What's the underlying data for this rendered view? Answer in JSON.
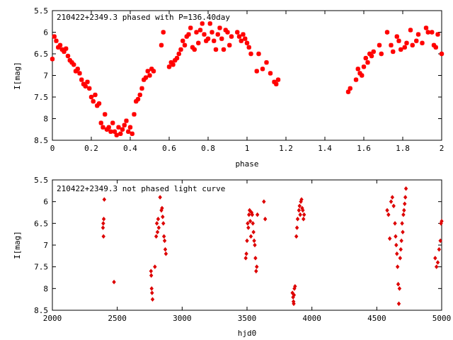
{
  "chart_data": [
    {
      "type": "scatter",
      "title": "210422+2349.3 phased with P=136.40day",
      "xlabel": "phase",
      "ylabel": "I[mag]",
      "xlim": [
        0,
        2
      ],
      "ylim": [
        8.5,
        5.5
      ],
      "y_inverted": true,
      "grid": false,
      "marker": "star",
      "color": "#ff0000",
      "xticks": [
        "0",
        "0.2",
        "0.4",
        "0.6",
        "0.8",
        "1",
        "1.2",
        "1.4",
        "1.6",
        "1.8",
        "2"
      ],
      "yticks": [
        "5.5",
        "6",
        "6.5",
        "7",
        "7.5",
        "8",
        "8.5"
      ],
      "points": [
        [
          0.0,
          6.62
        ],
        [
          0.01,
          6.1
        ],
        [
          0.02,
          6.2
        ],
        [
          0.03,
          6.35
        ],
        [
          0.04,
          6.3
        ],
        [
          0.05,
          6.4
        ],
        [
          0.06,
          6.45
        ],
        [
          0.07,
          6.38
        ],
        [
          0.08,
          6.55
        ],
        [
          0.09,
          6.65
        ],
        [
          0.1,
          6.7
        ],
        [
          0.11,
          6.75
        ],
        [
          0.12,
          6.9
        ],
        [
          0.13,
          6.85
        ],
        [
          0.14,
          6.95
        ],
        [
          0.15,
          7.1
        ],
        [
          0.16,
          7.2
        ],
        [
          0.17,
          7.25
        ],
        [
          0.18,
          7.15
        ],
        [
          0.19,
          7.3
        ],
        [
          0.2,
          7.5
        ],
        [
          0.21,
          7.6
        ],
        [
          0.22,
          7.45
        ],
        [
          0.23,
          7.7
        ],
        [
          0.24,
          7.65
        ],
        [
          0.25,
          8.1
        ],
        [
          0.26,
          8.2
        ],
        [
          0.27,
          7.9
        ],
        [
          0.28,
          8.25
        ],
        [
          0.29,
          8.2
        ],
        [
          0.3,
          8.3
        ],
        [
          0.31,
          8.1
        ],
        [
          0.32,
          8.3
        ],
        [
          0.33,
          8.38
        ],
        [
          0.34,
          8.2
        ],
        [
          0.35,
          8.35
        ],
        [
          0.36,
          8.25
        ],
        [
          0.37,
          8.15
        ],
        [
          0.38,
          8.05
        ],
        [
          0.39,
          8.3
        ],
        [
          0.4,
          8.2
        ],
        [
          0.41,
          8.35
        ],
        [
          0.42,
          7.9
        ],
        [
          0.43,
          7.6
        ],
        [
          0.44,
          7.55
        ],
        [
          0.45,
          7.45
        ],
        [
          0.46,
          7.3
        ],
        [
          0.47,
          7.1
        ],
        [
          0.48,
          7.05
        ],
        [
          0.49,
          6.9
        ],
        [
          0.5,
          7.0
        ],
        [
          0.51,
          6.85
        ],
        [
          0.52,
          6.9
        ],
        [
          0.56,
          6.3
        ],
        [
          0.57,
          6.0
        ],
        [
          0.6,
          6.8
        ],
        [
          0.61,
          6.7
        ],
        [
          0.62,
          6.75
        ],
        [
          0.63,
          6.65
        ],
        [
          0.64,
          6.6
        ],
        [
          0.65,
          6.5
        ],
        [
          0.66,
          6.4
        ],
        [
          0.67,
          6.2
        ],
        [
          0.68,
          6.3
        ],
        [
          0.69,
          6.1
        ],
        [
          0.7,
          6.05
        ],
        [
          0.71,
          5.9
        ],
        [
          0.72,
          6.35
        ],
        [
          0.73,
          6.4
        ],
        [
          0.74,
          6.0
        ],
        [
          0.75,
          6.25
        ],
        [
          0.76,
          5.95
        ],
        [
          0.77,
          5.8
        ],
        [
          0.78,
          6.05
        ],
        [
          0.79,
          6.2
        ],
        [
          0.8,
          6.15
        ],
        [
          0.81,
          5.8
        ],
        [
          0.82,
          6.0
        ],
        [
          0.83,
          6.2
        ],
        [
          0.84,
          6.4
        ],
        [
          0.85,
          6.05
        ],
        [
          0.86,
          5.9
        ],
        [
          0.87,
          6.15
        ],
        [
          0.88,
          6.4
        ],
        [
          0.89,
          5.95
        ],
        [
          0.9,
          6.0
        ],
        [
          0.91,
          6.3
        ],
        [
          0.92,
          6.1
        ],
        [
          0.95,
          6.0
        ],
        [
          0.96,
          6.1
        ],
        [
          0.97,
          6.2
        ],
        [
          0.98,
          6.05
        ],
        [
          0.99,
          6.15
        ],
        [
          1.0,
          6.25
        ],
        [
          1.01,
          6.35
        ],
        [
          1.02,
          6.5
        ],
        [
          1.05,
          6.9
        ],
        [
          1.06,
          6.5
        ],
        [
          1.08,
          6.85
        ],
        [
          1.1,
          6.7
        ],
        [
          1.12,
          6.95
        ],
        [
          1.14,
          7.15
        ],
        [
          1.15,
          7.2
        ],
        [
          1.16,
          7.1
        ],
        [
          1.52,
          7.38
        ],
        [
          1.53,
          7.3
        ],
        [
          1.56,
          7.1
        ],
        [
          1.57,
          6.85
        ],
        [
          1.58,
          6.95
        ],
        [
          1.59,
          7.0
        ],
        [
          1.6,
          6.8
        ],
        [
          1.61,
          6.6
        ],
        [
          1.62,
          6.7
        ],
        [
          1.63,
          6.5
        ],
        [
          1.64,
          6.55
        ],
        [
          1.65,
          6.45
        ],
        [
          1.68,
          6.3
        ],
        [
          1.69,
          6.5
        ],
        [
          1.72,
          6.0
        ],
        [
          1.74,
          6.3
        ],
        [
          1.75,
          6.45
        ],
        [
          1.77,
          6.1
        ],
        [
          1.78,
          6.2
        ],
        [
          1.79,
          6.4
        ],
        [
          1.81,
          6.35
        ],
        [
          1.82,
          6.25
        ],
        [
          1.84,
          5.95
        ],
        [
          1.85,
          6.3
        ],
        [
          1.87,
          6.2
        ],
        [
          1.88,
          6.05
        ],
        [
          1.9,
          6.25
        ],
        [
          1.92,
          5.9
        ],
        [
          1.93,
          6.0
        ],
        [
          1.95,
          6.0
        ],
        [
          1.96,
          6.3
        ],
        [
          1.97,
          6.35
        ],
        [
          1.98,
          6.05
        ],
        [
          2.0,
          6.5
        ]
      ]
    },
    {
      "type": "scatter",
      "title": "210422+2349.3 not phased light curve",
      "xlabel": "hjd0",
      "ylabel": "I[mag]",
      "xlim": [
        2000,
        5000
      ],
      "ylim": [
        8.5,
        5.5
      ],
      "y_inverted": true,
      "grid": false,
      "marker": "diamond",
      "color": "#dd0000",
      "xticks": [
        "2000",
        "2500",
        "3000",
        "3500",
        "4000",
        "4500",
        "5000"
      ],
      "yticks": [
        "5.5",
        "6",
        "6.5",
        "7",
        "7.5",
        "8",
        "8.5"
      ],
      "points": [
        [
          2390,
          6.6
        ],
        [
          2392,
          6.5
        ],
        [
          2394,
          6.8
        ],
        [
          2396,
          6.4
        ],
        [
          2400,
          5.95
        ],
        [
          2475,
          7.85
        ],
        [
          2760,
          7.6
        ],
        [
          2762,
          7.7
        ],
        [
          2765,
          8.0
        ],
        [
          2768,
          8.1
        ],
        [
          2772,
          8.25
        ],
        [
          2790,
          7.5
        ],
        [
          2800,
          6.8
        ],
        [
          2805,
          6.5
        ],
        [
          2810,
          6.7
        ],
        [
          2815,
          6.4
        ],
        [
          2820,
          6.6
        ],
        [
          2830,
          5.9
        ],
        [
          2840,
          6.2
        ],
        [
          2845,
          6.15
        ],
        [
          2850,
          6.35
        ],
        [
          2855,
          6.5
        ],
        [
          2860,
          6.8
        ],
        [
          2865,
          6.9
        ],
        [
          2870,
          7.1
        ],
        [
          2875,
          7.2
        ],
        [
          3490,
          7.3
        ],
        [
          3495,
          7.2
        ],
        [
          3500,
          6.9
        ],
        [
          3505,
          6.5
        ],
        [
          3510,
          6.6
        ],
        [
          3515,
          6.3
        ],
        [
          3520,
          6.2
        ],
        [
          3525,
          6.45
        ],
        [
          3530,
          6.8
        ],
        [
          3535,
          6.25
        ],
        [
          3540,
          6.3
        ],
        [
          3545,
          6.5
        ],
        [
          3550,
          6.7
        ],
        [
          3555,
          6.9
        ],
        [
          3560,
          7.0
        ],
        [
          3565,
          7.3
        ],
        [
          3570,
          7.6
        ],
        [
          3575,
          7.5
        ],
        [
          3580,
          6.3
        ],
        [
          3630,
          6.0
        ],
        [
          3640,
          6.4
        ],
        [
          3850,
          8.1
        ],
        [
          3855,
          8.2
        ],
        [
          3858,
          8.3
        ],
        [
          3860,
          8.35
        ],
        [
          3862,
          8.15
        ],
        [
          3865,
          8.0
        ],
        [
          3870,
          7.95
        ],
        [
          3880,
          6.8
        ],
        [
          3885,
          6.6
        ],
        [
          3890,
          6.4
        ],
        [
          3900,
          6.2
        ],
        [
          3905,
          6.1
        ],
        [
          3910,
          6.3
        ],
        [
          3915,
          6.0
        ],
        [
          3920,
          5.95
        ],
        [
          3925,
          6.15
        ],
        [
          3930,
          6.2
        ],
        [
          3935,
          6.4
        ],
        [
          3940,
          6.3
        ],
        [
          4580,
          6.2
        ],
        [
          4590,
          6.3
        ],
        [
          4600,
          6.85
        ],
        [
          4610,
          6.0
        ],
        [
          4620,
          5.9
        ],
        [
          4630,
          6.1
        ],
        [
          4640,
          6.5
        ],
        [
          4645,
          6.8
        ],
        [
          4650,
          7.0
        ],
        [
          4655,
          7.2
        ],
        [
          4660,
          7.5
        ],
        [
          4665,
          7.9
        ],
        [
          4670,
          8.35
        ],
        [
          4675,
          8.0
        ],
        [
          4680,
          7.3
        ],
        [
          4685,
          7.1
        ],
        [
          4690,
          6.9
        ],
        [
          4695,
          6.5
        ],
        [
          4700,
          6.7
        ],
        [
          4705,
          6.3
        ],
        [
          4710,
          6.2
        ],
        [
          4715,
          6.05
        ],
        [
          4720,
          5.9
        ],
        [
          4725,
          5.7
        ],
        [
          4950,
          7.3
        ],
        [
          4960,
          7.5
        ],
        [
          4970,
          7.4
        ],
        [
          4980,
          7.1
        ],
        [
          4990,
          6.9
        ],
        [
          4995,
          6.5
        ],
        [
          5000,
          6.45
        ]
      ]
    }
  ]
}
